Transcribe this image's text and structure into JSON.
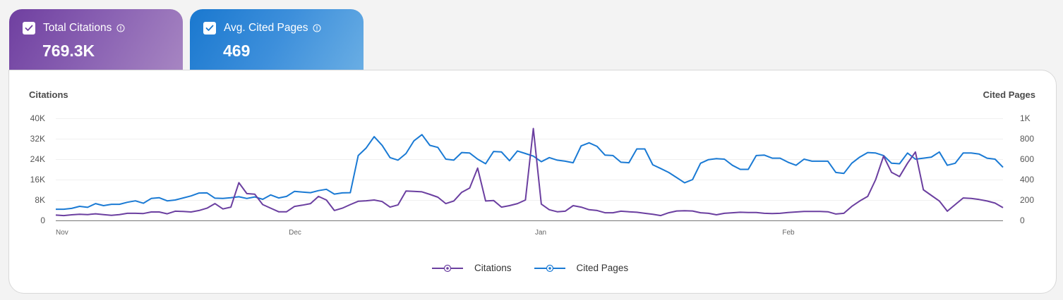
{
  "cards": [
    {
      "label": "Total Citations",
      "value": "769.3K",
      "checked": true,
      "color": "#7c4aa8"
    },
    {
      "label": "Avg. Cited Pages",
      "value": "469",
      "checked": true,
      "color": "#1f7fd4"
    }
  ],
  "chart": {
    "left_axis_title": "Citations",
    "right_axis_title": "Cited Pages",
    "left_ticks": [
      "0",
      "8K",
      "16K",
      "24K",
      "32K",
      "40K"
    ],
    "right_ticks": [
      "0",
      "200",
      "400",
      "600",
      "800",
      "1K"
    ],
    "x_ticks": [
      "Nov",
      "Dec",
      "Jan",
      "Feb"
    ],
    "legend": [
      {
        "label": "Citations",
        "color": "#6b3fa0"
      },
      {
        "label": "Cited Pages",
        "color": "#1a7ad4"
      }
    ]
  },
  "chart_data": {
    "type": "line",
    "title": "",
    "xlabel": "",
    "ylabel": "Citations",
    "ylabel_right": "Cited Pages",
    "ylim": [
      0,
      40000
    ],
    "ylim_right": [
      0,
      1000
    ],
    "x_tick_labels": [
      "Nov",
      "Dec",
      "Jan",
      "Feb"
    ],
    "grid": true,
    "legend_position": "bottom",
    "x": [
      "Nov 1",
      "Nov 4",
      "Nov 7",
      "Nov 10",
      "Nov 13",
      "Nov 16",
      "Nov 19",
      "Nov 22",
      "Nov 24",
      "Nov 26",
      "Nov 28",
      "Dec 1",
      "Dec 4",
      "Dec 7",
      "Dec 8",
      "Dec 10",
      "Dec 13",
      "Dec 16",
      "Dec 19",
      "Dec 22",
      "Dec 23",
      "Dec 24",
      "Dec 28",
      "Dec 30",
      "Dec 31",
      "Jan 1",
      "Jan 4",
      "Jan 7",
      "Jan 10",
      "Jan 13",
      "Jan 16",
      "Jan 19",
      "Jan 22",
      "Jan 25",
      "Jan 28",
      "Feb 1",
      "Feb 4",
      "Feb 7",
      "Feb 9",
      "Feb 11",
      "Feb 13",
      "Feb 15",
      "Feb 17",
      "Feb 20",
      "Feb 23",
      "Feb 26"
    ],
    "series": [
      {
        "name": "Citations",
        "axis": "left",
        "color": "#6b3fa0",
        "values": [
          2000,
          2200,
          2500,
          2300,
          3000,
          3200,
          4500,
          7000,
          14800,
          10000,
          6000,
          5500,
          8000,
          9000,
          9000,
          5000,
          11000,
          10000,
          7500,
          11500,
          20500,
          7300,
          5800,
          8000,
          36000,
          6000,
          3500,
          5500,
          3000,
          3600,
          3000,
          2000,
          3800,
          2800,
          3300,
          3200,
          3500,
          3200,
          7800,
          15000,
          24500,
          17500,
          26500,
          11000,
          8000,
          5000
        ]
      },
      {
        "name": "Cited Pages",
        "axis": "right",
        "color": "#1a7ad4",
        "values": [
          110,
          120,
          140,
          160,
          180,
          205,
          240,
          200,
          210,
          260,
          230,
          290,
          270,
          280,
          700,
          810,
          590,
          840,
          600,
          650,
          570,
          660,
          730,
          600,
          700,
          680,
          590,
          740,
          620,
          600,
          480,
          400,
          490,
          560,
          510,
          520,
          490,
          540,
          450,
          610,
          660,
          640,
          650,
          660,
          660,
          520
        ]
      }
    ]
  }
}
